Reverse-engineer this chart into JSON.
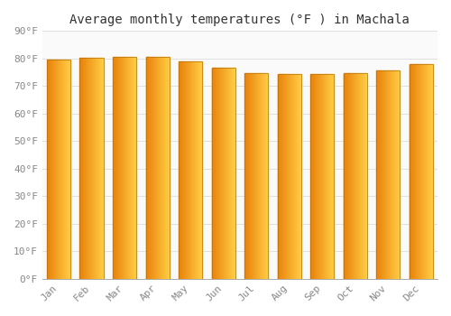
{
  "title": "Average monthly temperatures (°F ) in Machala",
  "months": [
    "Jan",
    "Feb",
    "Mar",
    "Apr",
    "May",
    "Jun",
    "Jul",
    "Aug",
    "Sep",
    "Oct",
    "Nov",
    "Dec"
  ],
  "values": [
    79.5,
    80.2,
    80.6,
    80.6,
    79.0,
    76.5,
    74.8,
    74.3,
    74.5,
    74.7,
    75.7,
    78.1
  ],
  "ylim": [
    0,
    90
  ],
  "yticks": [
    0,
    10,
    20,
    30,
    40,
    50,
    60,
    70,
    80,
    90
  ],
  "ytick_labels": [
    "0°F",
    "10°F",
    "20°F",
    "30°F",
    "40°F",
    "50°F",
    "60°F",
    "70°F",
    "80°F",
    "90°F"
  ],
  "bar_color_left": "#E8820A",
  "bar_color_right": "#FFCC44",
  "bar_edge_color": "#B8720A",
  "background_color": "#FFFFFF",
  "plot_bg_color": "#FAFAFA",
  "grid_color": "#E0E0E0",
  "title_fontsize": 10,
  "tick_fontsize": 8,
  "font_family": "monospace",
  "bar_width": 0.72,
  "n_gradient_steps": 40
}
